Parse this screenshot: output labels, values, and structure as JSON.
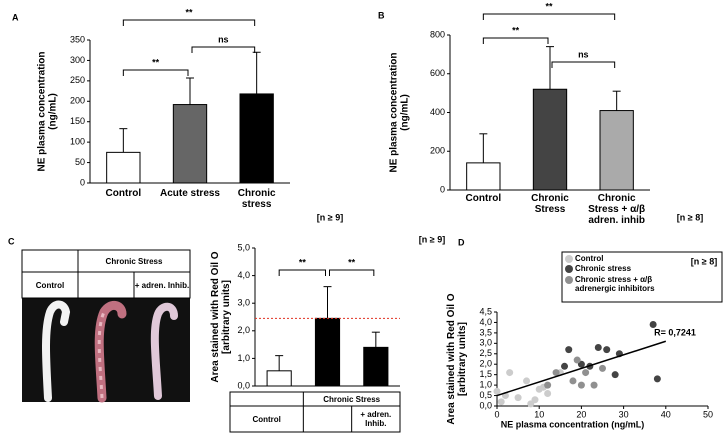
{
  "chart_data": [
    {
      "type": "bar",
      "panel": "A",
      "ylabel": "NE  plasma concentration (ng/mL)",
      "note": "[n ≥ 9]",
      "categories": [
        "Control",
        "Acute stress",
        "Chronic stress"
      ],
      "values": [
        75,
        192,
        218
      ],
      "errors": [
        58,
        65,
        102
      ],
      "colors": [
        "#ffffff",
        "#666666",
        "#000000"
      ],
      "ylim": [
        0,
        350
      ],
      "yticks": [
        0,
        50,
        100,
        150,
        200,
        250,
        300,
        350
      ],
      "brackets": [
        "**",
        "ns",
        "**"
      ]
    },
    {
      "type": "bar",
      "panel": "B",
      "ylabel": "NE  plasma concentration (ng/mL)",
      "note": "[n ≥ 8]",
      "categories": [
        "Control",
        "Chronic Stress",
        "Chronic Stress + α/β adren. inhib"
      ],
      "values": [
        140,
        520,
        410
      ],
      "errors": [
        150,
        220,
        100
      ],
      "colors": [
        "#ffffff",
        "#444444",
        "#aaaaaa"
      ],
      "ylim": [
        0,
        800
      ],
      "yticks": [
        0,
        200,
        400,
        600,
        800
      ],
      "brackets": [
        "**",
        "**",
        "ns"
      ]
    },
    {
      "type": "bar",
      "panel": "C",
      "ylabel": "Area stained with Red Oil O [arbitrary units]",
      "note": "[n ≥ 9]",
      "categories": [
        "Control",
        null,
        "+ adren. Inhib."
      ],
      "group_label": "Chronic Stress",
      "photo_table": {
        "group_label": "Chronic Stress",
        "labels": [
          "Control",
          "+ adren. Inhib."
        ]
      },
      "values": [
        0.55,
        2.45,
        1.4
      ],
      "errors": [
        0.55,
        1.15,
        0.55
      ],
      "colors": [
        "#ffffff",
        "#000000",
        "#000000"
      ],
      "reference_line": 2.45,
      "reference_color": "#e03020",
      "ylim": [
        0,
        5
      ],
      "yticks": [
        {
          "value": 0,
          "label": "0,0"
        },
        {
          "value": 1,
          "label": "1,0"
        },
        {
          "value": 2,
          "label": "2,0"
        },
        {
          "value": 3,
          "label": "3,0"
        },
        {
          "value": 4,
          "label": "4,0"
        },
        {
          "value": 5,
          "label": "5,0"
        }
      ],
      "brackets": [
        "**",
        "**"
      ]
    },
    {
      "type": "scatter",
      "panel": "D",
      "ylabel": "Area stained with Red Oil O [arbitrary units]",
      "xlabel": "NE  plasma concentration (ng/mL)",
      "note": "[n ≥ 8]",
      "r_label": "R= 0,7241",
      "series": [
        {
          "name": "Control",
          "color": "#cccccc",
          "x": [
            0,
            1,
            2,
            5,
            7,
            9,
            10,
            11,
            12,
            15,
            3,
            8
          ],
          "values": [
            0.7,
            0.2,
            0.5,
            0.4,
            1.2,
            0.3,
            0.8,
            0.9,
            0.6,
            1.6,
            1.6,
            0.1
          ]
        },
        {
          "name": "Chronic stress",
          "color": "#444444",
          "x": [
            17,
            20,
            24,
            26,
            28,
            29,
            38,
            37,
            16,
            22
          ],
          "values": [
            2.7,
            2.0,
            2.8,
            2.7,
            1.5,
            2.5,
            1.3,
            3.9,
            1.9,
            1.9
          ]
        },
        {
          "name": "Chronic stress + α/β adrenergic  inhibitors",
          "color": "#909090",
          "x": [
            14,
            19,
            21,
            23,
            18,
            20,
            25,
            12
          ],
          "values": [
            1.6,
            2.2,
            1.6,
            1.0,
            1.2,
            1.0,
            1.8,
            1.0
          ]
        }
      ],
      "trendline": {
        "x": [
          0,
          40
        ],
        "values": [
          0.5,
          3.1
        ]
      },
      "xlim": [
        0,
        50
      ],
      "xticks": [
        0,
        10,
        20,
        30,
        40,
        50
      ],
      "ylim": [
        0,
        4.5
      ],
      "yticks": [
        {
          "value": 0,
          "label": "0,0"
        },
        {
          "value": 0.5,
          "label": "0,5"
        },
        {
          "value": 1,
          "label": "1,0"
        },
        {
          "value": 1.5,
          "label": "1,5"
        },
        {
          "value": 2,
          "label": "2,0"
        },
        {
          "value": 2.5,
          "label": "2,5"
        },
        {
          "value": 3,
          "label": "3,0"
        },
        {
          "value": 3.5,
          "label": "3,5"
        },
        {
          "value": 4,
          "label": "4,0"
        },
        {
          "value": 4.5,
          "label": "4,5"
        }
      ]
    }
  ]
}
